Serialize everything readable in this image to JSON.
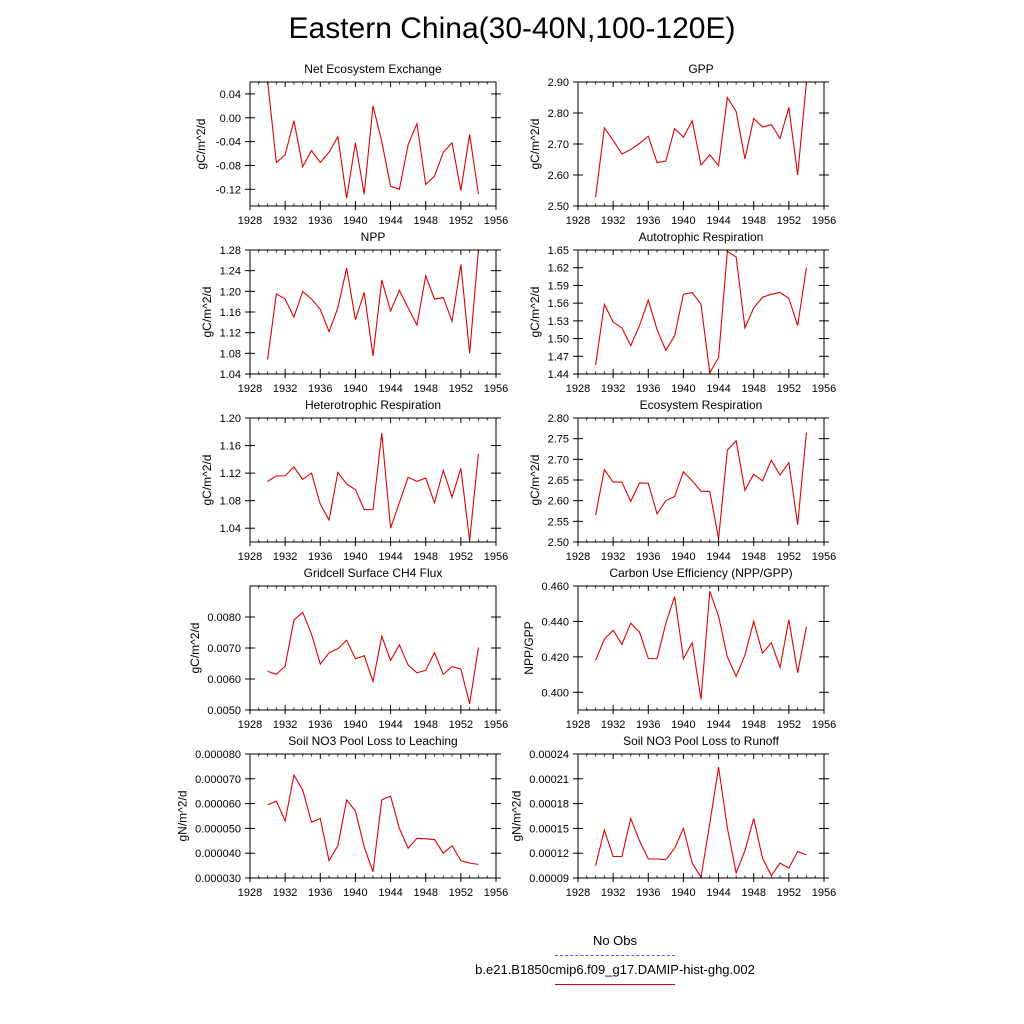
{
  "title": "Eastern China(30-40N,100-120E)",
  "legend": {
    "entries": [
      {
        "label": "No Obs",
        "color": "#5a5aff",
        "style": "dashed"
      },
      {
        "label": "b.e21.B1850cmip6.f09_g17.DAMIP-hist-ghg.002",
        "color": "#e00000",
        "style": "solid"
      }
    ]
  },
  "chart_data": [
    {
      "type": "line",
      "title": "Net Ecosystem Exchange",
      "ylabel": "gC/m^2/d",
      "x": [
        1930,
        1931,
        1932,
        1933,
        1934,
        1935,
        1936,
        1937,
        1938,
        1939,
        1940,
        1941,
        1942,
        1943,
        1944,
        1945,
        1946,
        1947,
        1948,
        1949,
        1950,
        1951,
        1952,
        1953,
        1954
      ],
      "series": [
        {
          "color": "#e00000",
          "values": [
            0.062,
            -0.075,
            -0.062,
            -0.005,
            -0.082,
            -0.055,
            -0.075,
            -0.058,
            -0.032,
            -0.135,
            -0.042,
            -0.128,
            0.02,
            -0.04,
            -0.115,
            -0.12,
            -0.045,
            -0.01,
            -0.112,
            -0.098,
            -0.058,
            -0.042,
            -0.122,
            -0.028,
            -0.128
          ]
        }
      ],
      "xlim": [
        1928,
        1956
      ],
      "ylim": [
        -0.148,
        0.06
      ],
      "xticks": [
        1928,
        1932,
        1936,
        1940,
        1944,
        1948,
        1952,
        1956
      ],
      "xtick_labels": [
        "1928",
        "1932",
        "1936",
        "1940",
        "1944",
        "1948",
        "1952",
        "1956"
      ],
      "yticks": [
        0.04,
        0.0,
        -0.04,
        -0.08,
        -0.12
      ],
      "ytick_labels": [
        "0.04",
        "0.00",
        "-0.04",
        "-0.08",
        "-0.12"
      ],
      "grid": false
    },
    {
      "type": "line",
      "title": "GPP",
      "ylabel": "gC/m^2/d",
      "x": [
        1930,
        1931,
        1932,
        1933,
        1934,
        1935,
        1936,
        1937,
        1938,
        1939,
        1940,
        1941,
        1942,
        1943,
        1944,
        1945,
        1946,
        1947,
        1948,
        1949,
        1950,
        1951,
        1952,
        1953,
        1954
      ],
      "series": [
        {
          "color": "#e00000",
          "values": [
            2.528,
            2.752,
            2.712,
            2.668,
            2.682,
            2.702,
            2.725,
            2.64,
            2.645,
            2.75,
            2.722,
            2.775,
            2.632,
            2.665,
            2.63,
            2.85,
            2.805,
            2.652,
            2.782,
            2.755,
            2.762,
            2.718,
            2.818,
            2.6,
            2.9
          ]
        }
      ],
      "xlim": [
        1928,
        1956
      ],
      "ylim": [
        2.5,
        2.9
      ],
      "xticks": [
        1928,
        1932,
        1936,
        1940,
        1944,
        1948,
        1952,
        1956
      ],
      "xtick_labels": [
        "1928",
        "1932",
        "1936",
        "1940",
        "1944",
        "1948",
        "1952",
        "1956"
      ],
      "yticks": [
        2.5,
        2.6,
        2.7,
        2.8,
        2.9
      ],
      "ytick_labels": [
        "2.50",
        "2.60",
        "2.70",
        "2.80",
        "2.90"
      ],
      "grid": false
    },
    {
      "type": "line",
      "title": "NPP",
      "ylabel": "gC/m^2/d",
      "x": [
        1930,
        1931,
        1932,
        1933,
        1934,
        1935,
        1936,
        1937,
        1938,
        1939,
        1940,
        1941,
        1942,
        1943,
        1944,
        1945,
        1946,
        1947,
        1948,
        1949,
        1950,
        1951,
        1952,
        1953,
        1954
      ],
      "series": [
        {
          "color": "#e00000",
          "values": [
            1.068,
            1.195,
            1.185,
            1.15,
            1.2,
            1.185,
            1.165,
            1.122,
            1.168,
            1.245,
            1.145,
            1.198,
            1.075,
            1.222,
            1.162,
            1.202,
            1.168,
            1.135,
            1.23,
            1.185,
            1.188,
            1.142,
            1.252,
            1.08,
            1.28
          ]
        }
      ],
      "xlim": [
        1928,
        1956
      ],
      "ylim": [
        1.04,
        1.28
      ],
      "xticks": [
        1928,
        1932,
        1936,
        1940,
        1944,
        1948,
        1952,
        1956
      ],
      "xtick_labels": [
        "1928",
        "1932",
        "1936",
        "1940",
        "1944",
        "1948",
        "1952",
        "1956"
      ],
      "yticks": [
        1.04,
        1.08,
        1.12,
        1.16,
        1.2,
        1.24,
        1.28
      ],
      "ytick_labels": [
        "1.04",
        "1.08",
        "1.12",
        "1.16",
        "1.20",
        "1.24",
        "1.28"
      ],
      "grid": false
    },
    {
      "type": "line",
      "title": "Autotrophic Respiration",
      "ylabel": "gC/m^2/d",
      "x": [
        1930,
        1931,
        1932,
        1933,
        1934,
        1935,
        1936,
        1937,
        1938,
        1939,
        1940,
        1941,
        1942,
        1943,
        1944,
        1945,
        1946,
        1947,
        1948,
        1949,
        1950,
        1951,
        1952,
        1953,
        1954
      ],
      "series": [
        {
          "color": "#e00000",
          "values": [
            1.455,
            1.558,
            1.528,
            1.518,
            1.488,
            1.522,
            1.565,
            1.515,
            1.48,
            1.505,
            1.575,
            1.578,
            1.558,
            1.442,
            1.468,
            1.648,
            1.638,
            1.518,
            1.552,
            1.57,
            1.575,
            1.578,
            1.568,
            1.522,
            1.62
          ]
        }
      ],
      "xlim": [
        1928,
        1956
      ],
      "ylim": [
        1.44,
        1.65
      ],
      "xticks": [
        1928,
        1932,
        1936,
        1940,
        1944,
        1948,
        1952,
        1956
      ],
      "xtick_labels": [
        "1928",
        "1932",
        "1936",
        "1940",
        "1944",
        "1948",
        "1952",
        "1956"
      ],
      "yticks": [
        1.44,
        1.47,
        1.5,
        1.53,
        1.56,
        1.59,
        1.62,
        1.65
      ],
      "ytick_labels": [
        "1.44",
        "1.47",
        "1.50",
        "1.53",
        "1.56",
        "1.59",
        "1.62",
        "1.65"
      ],
      "grid": false
    },
    {
      "type": "line",
      "title": "Heterotrophic Respiration",
      "ylabel": "gC/m^2/d",
      "x": [
        1930,
        1931,
        1932,
        1933,
        1934,
        1935,
        1936,
        1937,
        1938,
        1939,
        1940,
        1941,
        1942,
        1943,
        1944,
        1945,
        1946,
        1947,
        1948,
        1949,
        1950,
        1951,
        1952,
        1953,
        1954
      ],
      "series": [
        {
          "color": "#e00000",
          "values": [
            1.108,
            1.116,
            1.116,
            1.129,
            1.111,
            1.12,
            1.075,
            1.052,
            1.121,
            1.104,
            1.096,
            1.067,
            1.067,
            1.178,
            1.04,
            1.077,
            1.114,
            1.108,
            1.113,
            1.077,
            1.124,
            1.085,
            1.127,
            1.022,
            1.148
          ]
        }
      ],
      "xlim": [
        1928,
        1956
      ],
      "ylim": [
        1.02,
        1.2
      ],
      "xticks": [
        1928,
        1932,
        1936,
        1940,
        1944,
        1948,
        1952,
        1956
      ],
      "xtick_labels": [
        "1928",
        "1932",
        "1936",
        "1940",
        "1944",
        "1948",
        "1952",
        "1956"
      ],
      "yticks": [
        1.04,
        1.08,
        1.12,
        1.16,
        1.2
      ],
      "ytick_labels": [
        "1.04",
        "1.08",
        "1.12",
        "1.16",
        "1.20"
      ],
      "grid": false
    },
    {
      "type": "line",
      "title": "Ecosystem Respiration",
      "ylabel": "gC/m^2/d",
      "x": [
        1930,
        1931,
        1932,
        1933,
        1934,
        1935,
        1936,
        1937,
        1938,
        1939,
        1940,
        1941,
        1942,
        1943,
        1944,
        1945,
        1946,
        1947,
        1948,
        1949,
        1950,
        1951,
        1952,
        1953,
        1954
      ],
      "series": [
        {
          "color": "#e00000",
          "values": [
            2.565,
            2.675,
            2.645,
            2.645,
            2.598,
            2.643,
            2.642,
            2.568,
            2.6,
            2.61,
            2.67,
            2.648,
            2.623,
            2.622,
            2.508,
            2.722,
            2.745,
            2.625,
            2.664,
            2.648,
            2.698,
            2.662,
            2.692,
            2.542,
            2.765
          ]
        }
      ],
      "xlim": [
        1928,
        1956
      ],
      "ylim": [
        2.5,
        2.8
      ],
      "xticks": [
        1928,
        1932,
        1936,
        1940,
        1944,
        1948,
        1952,
        1956
      ],
      "xtick_labels": [
        "1928",
        "1932",
        "1936",
        "1940",
        "1944",
        "1948",
        "1952",
        "1956"
      ],
      "yticks": [
        2.5,
        2.55,
        2.6,
        2.65,
        2.7,
        2.75,
        2.8
      ],
      "ytick_labels": [
        "2.50",
        "2.55",
        "2.60",
        "2.65",
        "2.70",
        "2.75",
        "2.80"
      ],
      "grid": false
    },
    {
      "type": "line",
      "title": "Gridcell Surface CH4 Flux",
      "ylabel": "gC/m^2/d",
      "x": [
        1930,
        1931,
        1932,
        1933,
        1934,
        1935,
        1936,
        1937,
        1938,
        1939,
        1940,
        1941,
        1942,
        1943,
        1944,
        1945,
        1946,
        1947,
        1948,
        1949,
        1950,
        1951,
        1952,
        1953,
        1954
      ],
      "series": [
        {
          "color": "#e00000",
          "values": [
            0.00625,
            0.00615,
            0.00642,
            0.0079,
            0.00815,
            0.00745,
            0.00648,
            0.00685,
            0.00698,
            0.00725,
            0.00665,
            0.00675,
            0.00592,
            0.00738,
            0.0066,
            0.0071,
            0.00645,
            0.0062,
            0.00628,
            0.00685,
            0.00615,
            0.0064,
            0.00632,
            0.0052,
            0.00702
          ]
        }
      ],
      "xlim": [
        1928,
        1956
      ],
      "ylim": [
        0.005,
        0.009
      ],
      "xticks": [
        1928,
        1932,
        1936,
        1940,
        1944,
        1948,
        1952,
        1956
      ],
      "xtick_labels": [
        "1928",
        "1932",
        "1936",
        "1940",
        "1944",
        "1948",
        "1952",
        "1956"
      ],
      "yticks": [
        0.005,
        0.006,
        0.007,
        0.008
      ],
      "ytick_labels": [
        "0.0050",
        "0.0060",
        "0.0070",
        "0.0080"
      ],
      "grid": false
    },
    {
      "type": "line",
      "title": "Carbon Use Efficiency (NPP/GPP)",
      "ylabel": "NPP/GPP",
      "x": [
        1930,
        1931,
        1932,
        1933,
        1934,
        1935,
        1936,
        1937,
        1938,
        1939,
        1940,
        1941,
        1942,
        1943,
        1944,
        1945,
        1946,
        1947,
        1948,
        1949,
        1950,
        1951,
        1952,
        1953,
        1954
      ],
      "series": [
        {
          "color": "#e00000",
          "values": [
            0.418,
            0.43,
            0.435,
            0.427,
            0.439,
            0.434,
            0.419,
            0.419,
            0.439,
            0.454,
            0.419,
            0.428,
            0.396,
            0.457,
            0.443,
            0.42,
            0.409,
            0.421,
            0.44,
            0.422,
            0.428,
            0.414,
            0.441,
            0.411,
            0.437
          ]
        }
      ],
      "xlim": [
        1928,
        1956
      ],
      "ylim": [
        0.39,
        0.46
      ],
      "xticks": [
        1928,
        1932,
        1936,
        1940,
        1944,
        1948,
        1952,
        1956
      ],
      "xtick_labels": [
        "1928",
        "1932",
        "1936",
        "1940",
        "1944",
        "1948",
        "1952",
        "1956"
      ],
      "yticks": [
        0.4,
        0.42,
        0.44,
        0.46
      ],
      "ytick_labels": [
        "0.400",
        "0.420",
        "0.440",
        "0.460"
      ],
      "grid": false
    },
    {
      "type": "line",
      "title": "Soil NO3 Pool Loss to Leaching",
      "ylabel": "gN/m^2/d",
      "x": [
        1930,
        1931,
        1932,
        1933,
        1934,
        1935,
        1936,
        1937,
        1938,
        1939,
        1940,
        1941,
        1942,
        1943,
        1944,
        1945,
        1946,
        1947,
        1948,
        1949,
        1950,
        1951,
        1952,
        1953,
        1954
      ],
      "series": [
        {
          "color": "#e00000",
          "values": [
            5.95e-05,
            6.1e-05,
            5.3e-05,
            7.15e-05,
            6.55e-05,
            5.25e-05,
            5.4e-05,
            3.7e-05,
            4.3e-05,
            6.15e-05,
            5.7e-05,
            4.25e-05,
            3.25e-05,
            6.15e-05,
            6.3e-05,
            5e-05,
            4.2e-05,
            4.6e-05,
            4.58e-05,
            4.55e-05,
            4e-05,
            4.3e-05,
            3.7e-05,
            3.6e-05,
            3.55e-05
          ]
        }
      ],
      "xlim": [
        1928,
        1956
      ],
      "ylim": [
        3e-05,
        8e-05
      ],
      "xticks": [
        1928,
        1932,
        1936,
        1940,
        1944,
        1948,
        1952,
        1956
      ],
      "xtick_labels": [
        "1928",
        "1932",
        "1936",
        "1940",
        "1944",
        "1948",
        "1952",
        "1956"
      ],
      "yticks": [
        3e-05,
        4e-05,
        5e-05,
        6e-05,
        7e-05,
        8e-05
      ],
      "ytick_labels": [
        "0.000030",
        "0.000040",
        "0.000050",
        "0.000060",
        "0.000070",
        "0.000080"
      ],
      "grid": false
    },
    {
      "type": "line",
      "title": "Soil NO3 Pool Loss to Runoff",
      "ylabel": "gN/m^2/d",
      "x": [
        1930,
        1931,
        1932,
        1933,
        1934,
        1935,
        1936,
        1937,
        1938,
        1939,
        1940,
        1941,
        1942,
        1943,
        1944,
        1945,
        1946,
        1947,
        1948,
        1949,
        1950,
        1951,
        1952,
        1953,
        1954
      ],
      "series": [
        {
          "color": "#e00000",
          "values": [
            0.000105,
            0.000148,
            0.000116,
            0.000116,
            0.000162,
            0.000135,
            0.000113,
            0.000113,
            0.000112,
            0.000126,
            0.00015,
            0.000108,
            9.1e-05,
            0.000156,
            0.000224,
            0.000151,
            9.6e-05,
            0.000123,
            0.000162,
            0.000114,
            9.3e-05,
            0.000108,
            0.000102,
            0.000122,
            0.000118
          ]
        }
      ],
      "xlim": [
        1928,
        1956
      ],
      "ylim": [
        9e-05,
        0.00024
      ],
      "xticks": [
        1928,
        1932,
        1936,
        1940,
        1944,
        1948,
        1952,
        1956
      ],
      "xtick_labels": [
        "1928",
        "1932",
        "1936",
        "1940",
        "1944",
        "1948",
        "1952",
        "1956"
      ],
      "yticks": [
        9e-05,
        0.00012,
        0.00015,
        0.00018,
        0.00021,
        0.00024
      ],
      "ytick_labels": [
        "0.00009",
        "0.00012",
        "0.00015",
        "0.00018",
        "0.00021",
        "0.00024"
      ],
      "grid": false
    }
  ]
}
